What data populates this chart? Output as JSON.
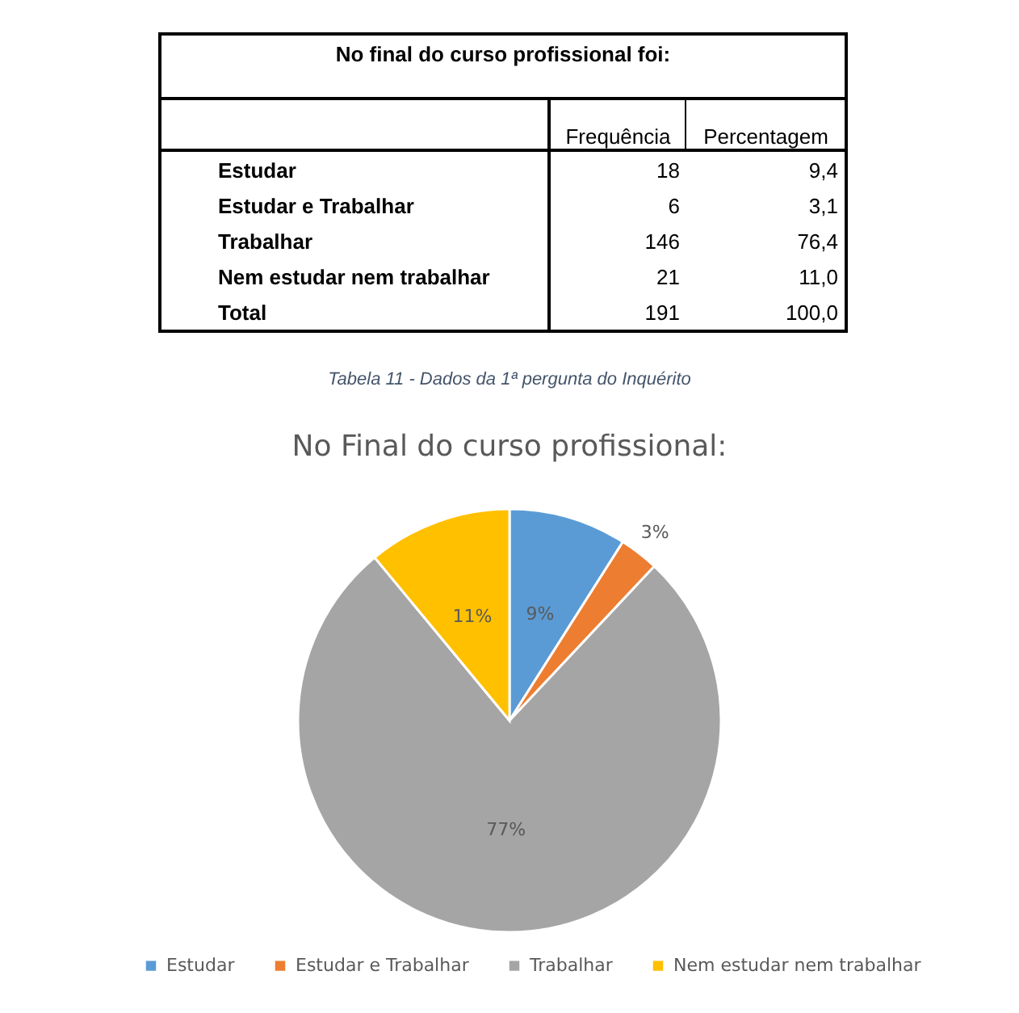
{
  "chart_data": [
    {
      "type": "other",
      "title": "No final do curso profissional foi:",
      "categories": [
        "Estudar",
        "Estudar e Trabalhar",
        "Trabalhar",
        "Nem estudar nem trabalhar",
        "Total"
      ],
      "series": [
        {
          "name": "Frequência",
          "values": [
            18,
            6,
            146,
            21,
            191
          ]
        },
        {
          "name": "Percentagem",
          "values": [
            9.4,
            3.1,
            76.4,
            11.0,
            100.0
          ],
          "value_labels": [
            "9,4",
            "3,1",
            "76,4",
            "11,0",
            "100,0"
          ]
        }
      ],
      "data_labels": true,
      "annotations": [
        "Tabela 11 - Dados da 1ª pergunta do Inquérito"
      ]
    },
    {
      "type": "pie",
      "title": "No Final do curso profissional:",
      "categories": [
        "Estudar",
        "Estudar e Trabalhar",
        "Trabalhar",
        "Nem estudar nem trabalhar"
      ],
      "values": [
        9,
        3,
        77,
        11
      ],
      "value_labels": [
        "9%",
        "3%",
        "77%",
        "11%"
      ],
      "colors": [
        "#5b9bd5",
        "#ed7d31",
        "#a5a5a5",
        "#ffc000"
      ],
      "legend": "bottom"
    }
  ]
}
